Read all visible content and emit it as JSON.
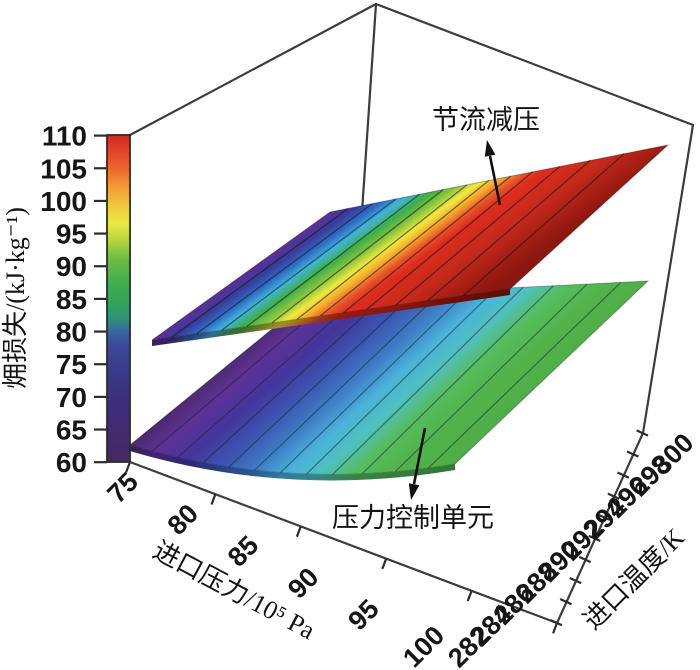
{
  "figure": {
    "background": "#ffffff",
    "frame_color": "#3c3c3c",
    "text_color": "#141414",
    "yaxis": {
      "label": "㶲损失/(kJ·kg⁻¹)",
      "ticks": [
        "110",
        "105",
        "100",
        "95",
        "90",
        "85",
        "80",
        "75",
        "70",
        "65",
        "60"
      ]
    },
    "xaxis": {
      "label": "进口压力/10⁵ Pa",
      "ticks": [
        "75",
        "80",
        "85",
        "90",
        "95",
        "100"
      ]
    },
    "zaxis": {
      "label": "进口温度/K",
      "ticks": [
        "282",
        "284",
        "286",
        "288",
        "290",
        "292",
        "294",
        "296",
        "298",
        "300"
      ]
    },
    "annotations": {
      "upper_surface": "节流减压",
      "lower_surface": "压力控制单元"
    },
    "colorbar_stops": [
      [
        0,
        "#cf2b20"
      ],
      [
        0.05,
        "#e04428"
      ],
      [
        0.1,
        "#ea642c"
      ],
      [
        0.16,
        "#f29d36"
      ],
      [
        0.22,
        "#eecb3c"
      ],
      [
        0.27,
        "#ece845"
      ],
      [
        0.32,
        "#b8d53e"
      ],
      [
        0.38,
        "#6cbc44"
      ],
      [
        0.46,
        "#3cab4d"
      ],
      [
        0.52,
        "#33a15c"
      ],
      [
        0.56,
        "#2f9377"
      ],
      [
        0.6,
        "#37669f"
      ],
      [
        0.64,
        "#3a4a9a"
      ],
      [
        0.72,
        "#3a3a8b"
      ],
      [
        0.82,
        "#3d2e79"
      ],
      [
        0.92,
        "#432a6c"
      ],
      [
        1,
        "#472860"
      ]
    ],
    "upper_surface_stops": [
      [
        0,
        "#5c2f94"
      ],
      [
        0.07,
        "#3a3b9c"
      ],
      [
        0.14,
        "#2f6fc4"
      ],
      [
        0.2,
        "#3fb4dc"
      ],
      [
        0.27,
        "#3fae49"
      ],
      [
        0.34,
        "#8cc63f"
      ],
      [
        0.4,
        "#efe93f"
      ],
      [
        0.46,
        "#f5a92d"
      ],
      [
        0.52,
        "#e8542a"
      ],
      [
        0.58,
        "#dd2c1e"
      ],
      [
        0.75,
        "#c42a1c"
      ],
      [
        0.9,
        "#a31d13"
      ],
      [
        1,
        "#8b1710"
      ]
    ],
    "lower_surface_stops": [
      [
        0,
        "#4a2968"
      ],
      [
        0.1,
        "#5e3196"
      ],
      [
        0.22,
        "#44359b"
      ],
      [
        0.34,
        "#3c55b0"
      ],
      [
        0.46,
        "#3f7fc6"
      ],
      [
        0.56,
        "#4bb2da"
      ],
      [
        0.66,
        "#4fc0bd"
      ],
      [
        0.76,
        "#57bc5e"
      ],
      [
        0.88,
        "#52b34c"
      ],
      [
        1,
        "#4fae47"
      ]
    ]
  },
  "chart_data": {
    "type": "surface",
    "title": "",
    "xlabel": "进口压力/10⁵ Pa",
    "ylabel": "进口温度/K",
    "zlabel": "㶲损失/(kJ·kg⁻¹)",
    "x_range": [
      75,
      100
    ],
    "y_range": [
      282,
      300
    ],
    "z_range": [
      60,
      110
    ],
    "x": [
      75,
      80,
      85,
      90,
      95,
      100
    ],
    "series": [
      {
        "name": "节流减压",
        "exergy_loss_vs_pressure": [
          78,
          85,
          92,
          98,
          104,
          110
        ]
      },
      {
        "name": "压力控制单元",
        "exergy_loss_vs_pressure": [
          62,
          66,
          71,
          76,
          81,
          86
        ]
      }
    ],
    "colormap": "rainbow",
    "colorbar_range": [
      60,
      110
    ],
    "legend_position": "colorbar-left",
    "grid": false
  }
}
